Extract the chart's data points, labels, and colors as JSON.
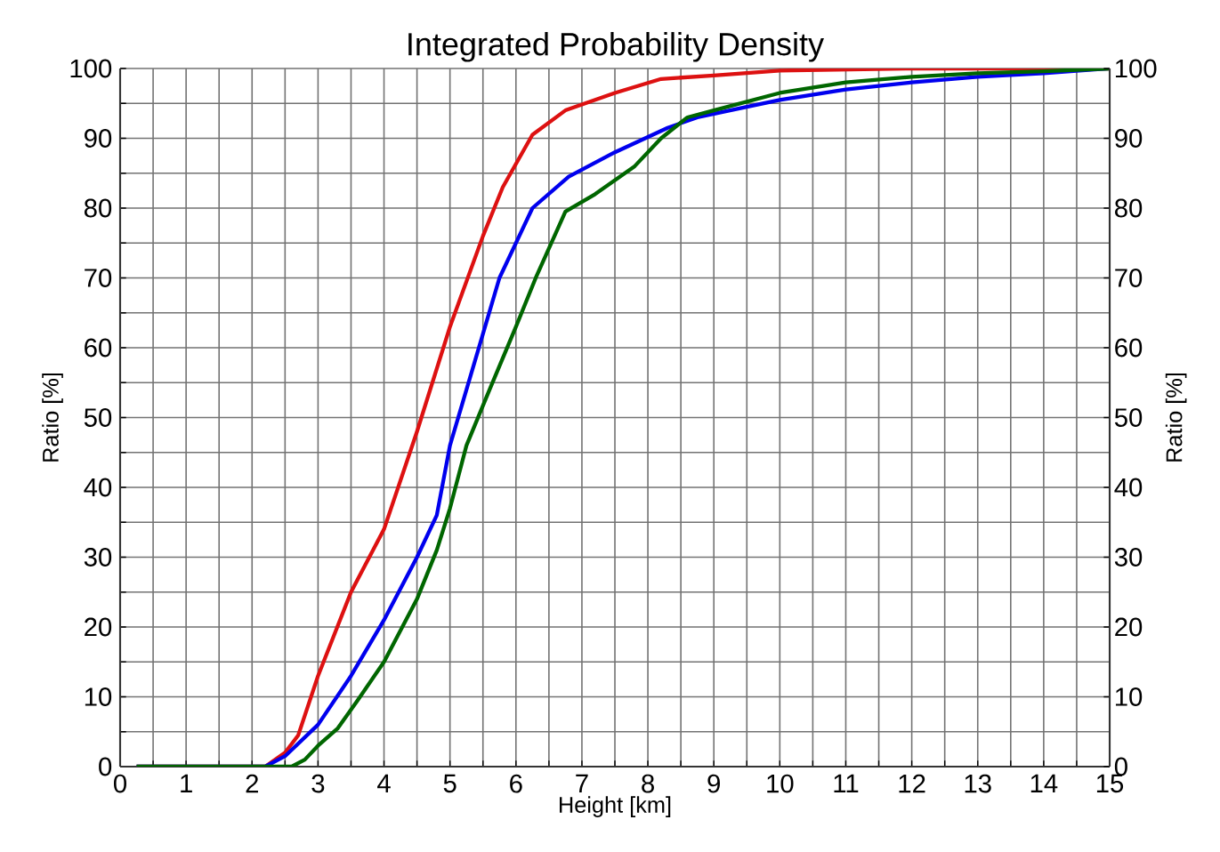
{
  "chart_data": {
    "type": "line",
    "title": "Integrated Probability Density",
    "xlabel": "Height [km]",
    "ylabel": "Ratio [%]",
    "y2label": "Ratio [%]",
    "xlim": [
      0,
      15
    ],
    "ylim": [
      0,
      100
    ],
    "y2lim": [
      0,
      100
    ],
    "xticks": [
      0,
      {
        "value": 0.5,
        "label": null
      },
      1,
      {
        "value": 1.5,
        "label": null
      },
      2,
      {
        "value": 2.5,
        "label": null
      },
      3,
      {
        "value": 3.5,
        "label": null
      },
      4,
      {
        "value": 4.5,
        "label": null
      },
      5,
      {
        "value": 5.5,
        "label": null
      },
      6,
      {
        "value": 6.5,
        "label": null
      },
      7,
      {
        "value": 7.5,
        "label": null
      },
      8,
      {
        "value": 8.5,
        "label": null
      },
      9,
      {
        "value": 9.5,
        "label": null
      },
      10,
      {
        "value": 10.5,
        "label": null
      },
      11,
      {
        "value": 11.5,
        "label": null
      },
      12,
      {
        "value": 12.5,
        "label": null
      },
      13,
      {
        "value": 13.5,
        "label": null
      },
      14,
      {
        "value": 14.5,
        "label": null
      },
      15
    ],
    "yticks": [
      0,
      {
        "value": 5,
        "label": null
      },
      10,
      {
        "value": 15,
        "label": null
      },
      20,
      {
        "value": 25,
        "label": null
      },
      30,
      {
        "value": 35,
        "label": null
      },
      40,
      {
        "value": 45,
        "label": null
      },
      50,
      {
        "value": 55,
        "label": null
      },
      60,
      {
        "value": 65,
        "label": null
      },
      70,
      {
        "value": 75,
        "label": null
      },
      80,
      {
        "value": 85,
        "label": null
      },
      90,
      {
        "value": 95,
        "label": null
      },
      100
    ],
    "y2ticks": [
      0,
      10,
      20,
      30,
      40,
      50,
      60,
      70,
      80,
      90,
      100
    ],
    "grid": true,
    "marker": "none",
    "line_style": "solid",
    "series": [
      {
        "color": "#dd1111",
        "x": [
          0.25,
          2.2,
          2.5,
          2.7,
          3,
          3.5,
          4,
          4.5,
          5,
          5.5,
          5.8,
          6.25,
          6.75,
          7.5,
          8.2,
          9,
          10,
          12,
          15
        ],
        "values": [
          0,
          0,
          2,
          4.5,
          13,
          25,
          34,
          48,
          63,
          76,
          83,
          90.5,
          94,
          96.5,
          98.5,
          99,
          99.7,
          100,
          100
        ]
      },
      {
        "color": "#0000ee",
        "x": [
          0.25,
          2.2,
          2.5,
          3,
          3.5,
          4,
          4.5,
          4.8,
          5,
          5.5,
          5.75,
          6.25,
          6.8,
          7.5,
          8.3,
          8.75,
          9.5,
          10,
          11,
          12,
          13,
          14,
          15
        ],
        "values": [
          0,
          0,
          1.5,
          6,
          13,
          21,
          30,
          36,
          46,
          62,
          70,
          80,
          84.5,
          88,
          91.5,
          93,
          94.5,
          95.5,
          97,
          98,
          98.8,
          99.3,
          100
        ]
      },
      {
        "color": "#006600",
        "x": [
          0.25,
          2.6,
          2.8,
          3,
          3.3,
          3.6,
          4,
          4.5,
          4.8,
          5,
          5.25,
          5.6,
          6,
          6.3,
          6.75,
          7.2,
          7.8,
          8.2,
          8.6,
          9,
          10,
          11,
          12,
          13,
          14,
          15
        ],
        "values": [
          0,
          0,
          1,
          3,
          5.5,
          9.5,
          15,
          24,
          31,
          37,
          46,
          54,
          63,
          70,
          79.5,
          82,
          86,
          90,
          93,
          94,
          96.5,
          98,
          98.8,
          99.3,
          99.6,
          100
        ]
      }
    ]
  }
}
